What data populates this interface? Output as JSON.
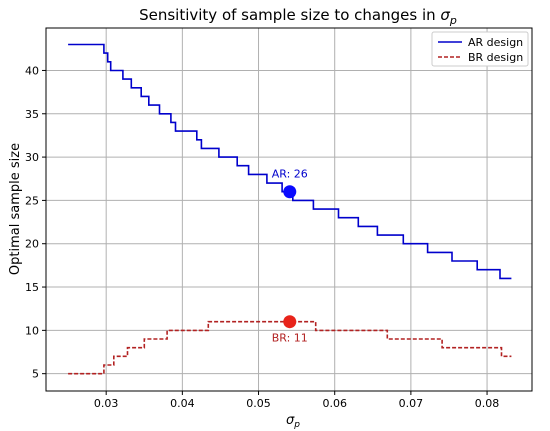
{
  "chart_data": {
    "type": "line",
    "title_prefix": "Sensitivity of sample size to changes in ",
    "title_symbol": "σ",
    "title_subscript": "p",
    "xlabel_symbol": "σ",
    "xlabel_subscript": "p",
    "ylabel": "Optimal sample size",
    "xlim": [
      0.0221,
      0.0859
    ],
    "ylim": [
      3.0,
      44.9
    ],
    "xticks": [
      0.03,
      0.04,
      0.05,
      0.06,
      0.07,
      0.08
    ],
    "xtick_labels": [
      "0.03",
      "0.04",
      "0.05",
      "0.06",
      "0.07",
      "0.08"
    ],
    "yticks": [
      5,
      10,
      15,
      20,
      25,
      30,
      35,
      40
    ],
    "ytick_labels": [
      "5",
      "10",
      "15",
      "20",
      "25",
      "30",
      "35",
      "40"
    ],
    "grid": true,
    "legend_position": "top-right",
    "series": [
      {
        "name": "AR design",
        "color": "#0000cc",
        "style": "solid",
        "steps": [
          [
            0.025,
            43
          ],
          [
            0.0297,
            42
          ],
          [
            0.0302,
            41
          ],
          [
            0.0306,
            40
          ],
          [
            0.0322,
            39
          ],
          [
            0.0333,
            38
          ],
          [
            0.0346,
            37
          ],
          [
            0.0356,
            36
          ],
          [
            0.037,
            35
          ],
          [
            0.0385,
            34
          ],
          [
            0.0391,
            33
          ],
          [
            0.0419,
            32
          ],
          [
            0.0425,
            31
          ],
          [
            0.0448,
            30
          ],
          [
            0.0472,
            29
          ],
          [
            0.0487,
            28
          ],
          [
            0.0511,
            27
          ],
          [
            0.0531,
            26
          ],
          [
            0.0545,
            25
          ],
          [
            0.0572,
            24
          ],
          [
            0.0605,
            23
          ],
          [
            0.0631,
            22
          ],
          [
            0.0656,
            21
          ],
          [
            0.069,
            20
          ],
          [
            0.0722,
            19
          ],
          [
            0.0754,
            18
          ],
          [
            0.0787,
            17
          ],
          [
            0.0817,
            16
          ]
        ],
        "x_end": 0.0832
      },
      {
        "name": "BR design",
        "color": "#b22222",
        "style": "dashed",
        "steps": [
          [
            0.025,
            5
          ],
          [
            0.0297,
            6
          ],
          [
            0.031,
            7
          ],
          [
            0.0328,
            8
          ],
          [
            0.035,
            9
          ],
          [
            0.038,
            10
          ],
          [
            0.0434,
            11
          ],
          [
            0.0575,
            10
          ],
          [
            0.0669,
            9
          ],
          [
            0.0741,
            8
          ],
          [
            0.0819,
            7
          ]
        ],
        "x_end": 0.0832
      }
    ],
    "markers": [
      {
        "series": "AR design",
        "x": 0.0541,
        "y": 26,
        "color": "#0a0aff"
      },
      {
        "series": "BR design",
        "x": 0.0541,
        "y": 11,
        "color": "#e8231a"
      }
    ],
    "annotations": [
      {
        "text": "AR: 26",
        "color": "#0000cc",
        "x": 0.0541,
        "y": 26
      },
      {
        "text": "BR: 11",
        "color": "#b22222",
        "x": 0.0541,
        "y": 11
      }
    ]
  }
}
